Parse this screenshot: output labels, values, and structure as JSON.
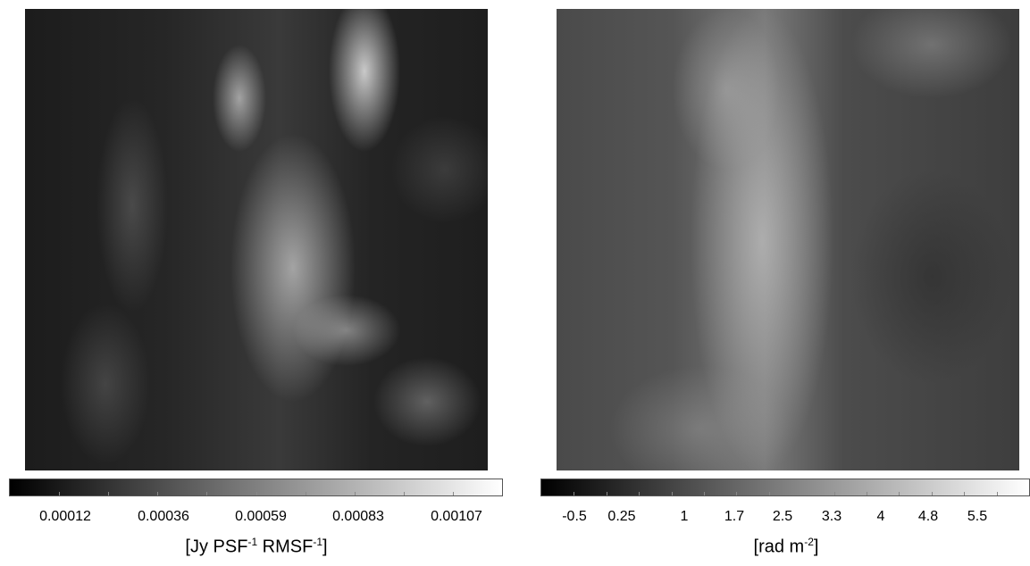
{
  "panels": [
    {
      "colorbar_ticks": [
        "0.00012",
        "0.00036",
        "0.00059",
        "0.00083",
        "0.00107"
      ],
      "unit": {
        "prefix": "[Jy PSF",
        "exp1": "-1",
        "middle": " RMSF",
        "exp2": "-1",
        "suffix": "]"
      }
    },
    {
      "colorbar_ticks": [
        "-0.5",
        "0.25",
        "1",
        "1.7",
        "2.5",
        "3.3",
        "4",
        "4.8",
        "5.5"
      ],
      "unit": {
        "prefix": "[rad m",
        "exp1": "-2",
        "suffix": "]"
      }
    }
  ]
}
